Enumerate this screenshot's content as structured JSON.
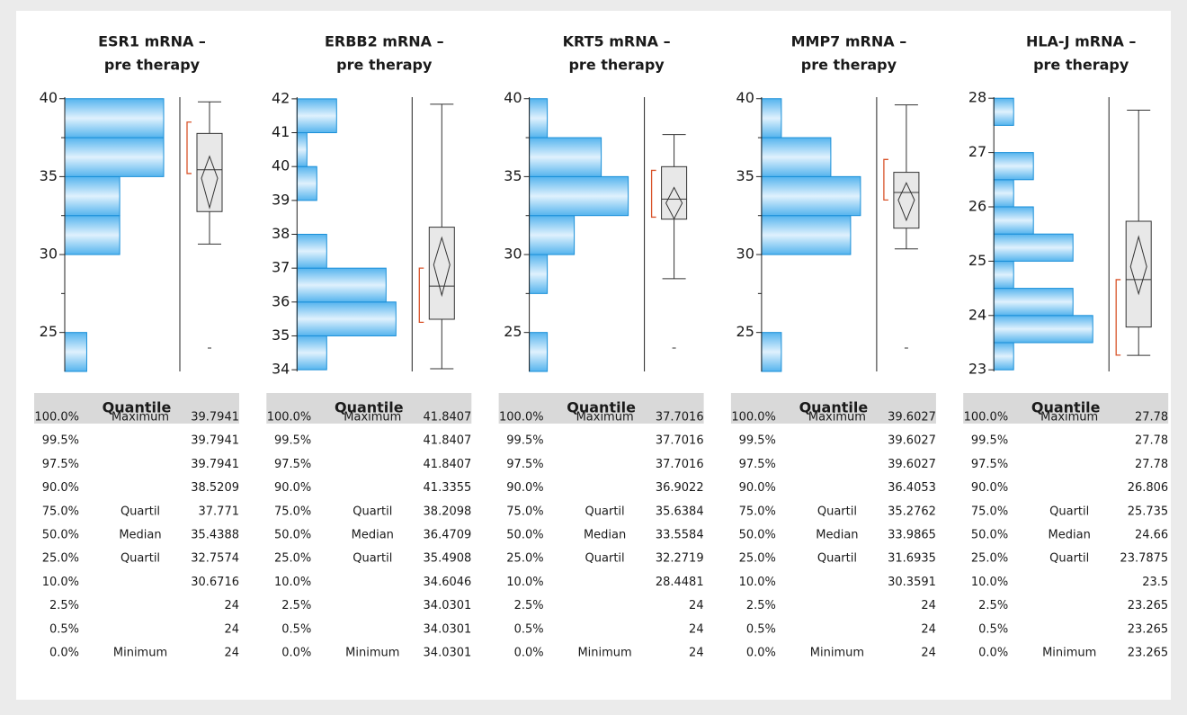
{
  "chart_data": [
    {
      "type": "histogram-box",
      "title": [
        "ESR1 mRNA –",
        "pre therapy"
      ],
      "ylim": [
        22.5,
        40.1
      ],
      "yticks": [
        25,
        30,
        35,
        40
      ],
      "minor_yticks": [
        27.5,
        32.5,
        37.5
      ],
      "bins": [
        22.5,
        25,
        27.5,
        30,
        32.5,
        35,
        37.5,
        40
      ],
      "counts": [
        2,
        0,
        0,
        5,
        5,
        9,
        9
      ],
      "box": {
        "whisker_low": 30.6716,
        "q1": 32.7574,
        "median": 35.4388,
        "q3": 37.771,
        "whisker_high": 39.7941,
        "mean": 34.9,
        "mean_ci": [
          33.0,
          36.3
        ],
        "shortest_half": [
          35.2,
          38.5
        ],
        "outliers": [
          24
        ]
      }
    },
    {
      "type": "histogram-box",
      "title": [
        "ERBB2 mRNA –",
        "pre therapy"
      ],
      "ylim": [
        33.95,
        42.05
      ],
      "yticks": [
        34,
        35,
        36,
        37,
        38,
        39,
        40,
        41,
        42
      ],
      "minor_yticks": [],
      "bins": [
        34,
        35,
        36,
        37,
        38,
        39,
        40,
        41,
        42
      ],
      "counts": [
        3,
        10,
        9,
        3,
        0,
        2,
        1,
        4
      ],
      "box": {
        "whisker_low": 34.0301,
        "q1": 35.4908,
        "median": 36.4709,
        "q3": 38.2098,
        "whisker_high": 41.8407,
        "mean": 37.1,
        "mean_ci": [
          36.2,
          37.9
        ],
        "shortest_half": [
          35.4,
          37.0
        ],
        "outliers": []
      }
    },
    {
      "type": "histogram-box",
      "title": [
        "KRT5 mRNA –",
        "pre therapy"
      ],
      "ylim": [
        22.5,
        40.1
      ],
      "yticks": [
        25,
        30,
        35,
        40
      ],
      "minor_yticks": [
        27.5,
        32.5,
        37.5
      ],
      "bins": [
        22.5,
        25,
        27.5,
        30,
        32.5,
        35,
        37.5,
        40
      ],
      "counts": [
        2,
        0,
        2,
        5,
        11,
        8,
        2
      ],
      "box": {
        "whisker_low": 28.4481,
        "q1": 32.2719,
        "median": 33.5584,
        "q3": 35.6384,
        "whisker_high": 37.7016,
        "mean": 33.3,
        "mean_ci": [
          32.3,
          34.3
        ],
        "shortest_half": [
          32.4,
          35.4
        ],
        "outliers": [
          24
        ]
      }
    },
    {
      "type": "histogram-box",
      "title": [
        "MMP7 mRNA –",
        "pre therapy"
      ],
      "ylim": [
        22.5,
        40.1
      ],
      "yticks": [
        25,
        30,
        35,
        40
      ],
      "minor_yticks": [
        27.5,
        32.5,
        37.5
      ],
      "bins": [
        22.5,
        25,
        27.5,
        30,
        32.5,
        35,
        37.5,
        40
      ],
      "counts": [
        2,
        0,
        0,
        9,
        10,
        7,
        2
      ],
      "box": {
        "whisker_low": 30.3591,
        "q1": 31.6935,
        "median": 33.9865,
        "q3": 35.2762,
        "whisker_high": 39.6027,
        "mean": 33.5,
        "mean_ci": [
          32.2,
          34.6
        ],
        "shortest_half": [
          33.5,
          36.1
        ],
        "outliers": [
          24
        ]
      }
    },
    {
      "type": "histogram-box",
      "title": [
        "HLA-J mRNA –",
        "pre therapy"
      ],
      "ylim": [
        22.97,
        28.02
      ],
      "yticks": [
        23,
        24,
        25,
        26,
        27,
        28
      ],
      "minor_yticks": [],
      "bins": [
        23,
        23.5,
        24,
        24.5,
        25,
        25.5,
        26,
        26.5,
        27,
        27.5,
        28
      ],
      "counts": [
        2,
        10,
        8,
        2,
        8,
        4,
        2,
        4,
        0,
        2
      ],
      "box": {
        "whisker_low": 23.265,
        "q1": 23.7875,
        "median": 24.66,
        "q3": 25.735,
        "whisker_high": 27.78,
        "mean": 24.9,
        "mean_ci": [
          24.4,
          25.45
        ],
        "shortest_half": [
          23.27,
          24.66
        ],
        "outliers": []
      }
    }
  ],
  "quantile_tables": [
    {
      "header": "Quantile",
      "rows": [
        [
          "100.0%",
          "Maximum",
          "39.7941"
        ],
        [
          "99.5%",
          null,
          "39.7941"
        ],
        [
          "97.5%",
          null,
          "39.7941"
        ],
        [
          "90.0%",
          null,
          "38.5209"
        ],
        [
          "75.0%",
          "Quartil",
          "37.771"
        ],
        [
          "50.0%",
          "Median",
          "35.4388"
        ],
        [
          "25.0%",
          "Quartil",
          "32.7574"
        ],
        [
          "10.0%",
          null,
          "30.6716"
        ],
        [
          "2.5%",
          null,
          "24"
        ],
        [
          "0.5%",
          null,
          "24"
        ],
        [
          "0.0%",
          "Minimum",
          "24"
        ]
      ]
    },
    {
      "header": "Quantile",
      "rows": [
        [
          "100.0%",
          "Maximum",
          "41.8407"
        ],
        [
          "99.5%",
          null,
          "41.8407"
        ],
        [
          "97.5%",
          null,
          "41.8407"
        ],
        [
          "90.0%",
          null,
          "41.3355"
        ],
        [
          "75.0%",
          "Quartil",
          "38.2098"
        ],
        [
          "50.0%",
          "Median",
          "36.4709"
        ],
        [
          "25.0%",
          "Quartil",
          "35.4908"
        ],
        [
          "10.0%",
          null,
          "34.6046"
        ],
        [
          "2.5%",
          null,
          "34.0301"
        ],
        [
          "0.5%",
          null,
          "34.0301"
        ],
        [
          "0.0%",
          "Minimum",
          "34.0301"
        ]
      ]
    },
    {
      "header": "Quantile",
      "rows": [
        [
          "100.0%",
          "Maximum",
          "37.7016"
        ],
        [
          "99.5%",
          null,
          "37.7016"
        ],
        [
          "97.5%",
          null,
          "37.7016"
        ],
        [
          "90.0%",
          null,
          "36.9022"
        ],
        [
          "75.0%",
          "Quartil",
          "35.6384"
        ],
        [
          "50.0%",
          "Median",
          "33.5584"
        ],
        [
          "25.0%",
          "Quartil",
          "32.2719"
        ],
        [
          "10.0%",
          null,
          "28.4481"
        ],
        [
          "2.5%",
          null,
          "24"
        ],
        [
          "0.5%",
          null,
          "24"
        ],
        [
          "0.0%",
          "Minimum",
          "24"
        ]
      ]
    },
    {
      "header": "Quantile",
      "rows": [
        [
          "100.0%",
          "Maximum",
          "39.6027"
        ],
        [
          "99.5%",
          null,
          "39.6027"
        ],
        [
          "97.5%",
          null,
          "39.6027"
        ],
        [
          "90.0%",
          null,
          "36.4053"
        ],
        [
          "75.0%",
          "Quartil",
          "35.2762"
        ],
        [
          "50.0%",
          "Median",
          "33.9865"
        ],
        [
          "25.0%",
          "Quartil",
          "31.6935"
        ],
        [
          "10.0%",
          null,
          "30.3591"
        ],
        [
          "2.5%",
          null,
          "24"
        ],
        [
          "0.5%",
          null,
          "24"
        ],
        [
          "0.0%",
          "Minimum",
          "24"
        ]
      ]
    },
    {
      "header": "Quantile",
      "rows": [
        [
          "100.0%",
          "Maximum",
          "27.78"
        ],
        [
          "99.5%",
          null,
          "27.78"
        ],
        [
          "97.5%",
          null,
          "27.78"
        ],
        [
          "90.0%",
          null,
          "26.806"
        ],
        [
          "75.0%",
          "Quartil",
          "25.735"
        ],
        [
          "50.0%",
          "Median",
          "24.66"
        ],
        [
          "25.0%",
          "Quartil",
          "23.7875"
        ],
        [
          "10.0%",
          null,
          "23.5"
        ],
        [
          "2.5%",
          null,
          "23.265"
        ],
        [
          "0.5%",
          null,
          "23.265"
        ],
        [
          "0.0%",
          "Minimum",
          "23.265"
        ]
      ]
    }
  ]
}
